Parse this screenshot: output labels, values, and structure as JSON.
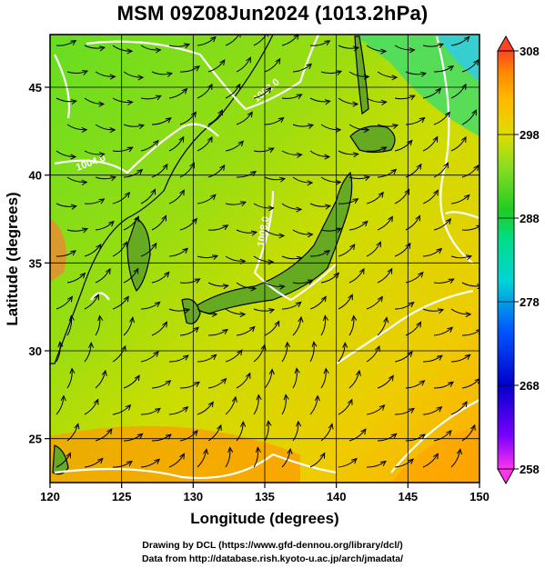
{
  "title": "MSM 09Z08Jun2024 (1013.2hPa)",
  "x_axis": {
    "label": "Longitude (degrees)",
    "ticks": [
      "120",
      "125",
      "130",
      "135",
      "140",
      "145",
      "150"
    ]
  },
  "y_axis": {
    "label": "Latitude  (degrees)",
    "ticks": [
      "25",
      "30",
      "35",
      "40",
      "45"
    ]
  },
  "colorbar": {
    "ticks": [
      "258",
      "268",
      "278",
      "288",
      "298",
      "308"
    ],
    "min": 258,
    "max": 308,
    "colors": [
      "#ff33ee",
      "#7700ff",
      "#0000cc",
      "#0055ff",
      "#0099ff",
      "#00d5d5",
      "#00dd88",
      "#22cc22",
      "#88dd22",
      "#dddd00",
      "#ffbb00",
      "#ff8800",
      "#ff4422"
    ]
  },
  "pressure_contours": [
    "1008.0",
    "1004.0",
    "1008.0"
  ],
  "credit_lines": [
    "Drawing by DCL (https://www.gfd-dennou.org/library/dcl/)",
    "Data from http://database.rish.kyoto-u.ac.jp/arch/jmadata/"
  ]
}
